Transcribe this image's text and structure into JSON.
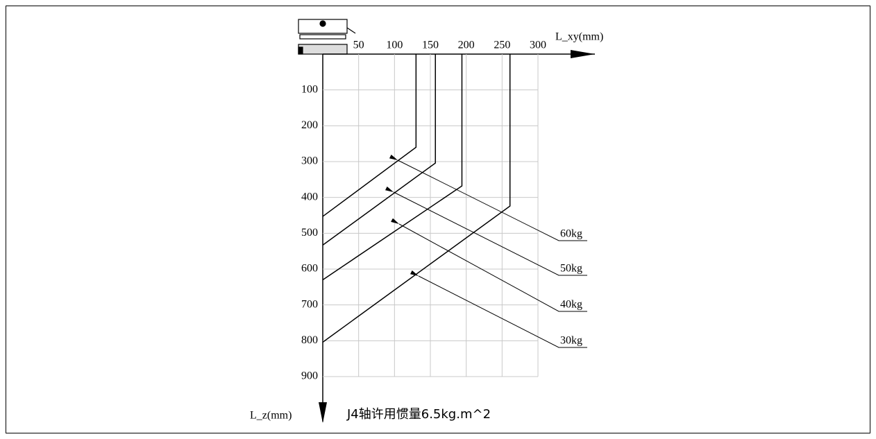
{
  "chart_data": {
    "type": "line",
    "title": "J4轴许用惯量6.5kg.m^2",
    "x_label": "L_xy(mm)",
    "y_label": "L_z(mm)",
    "xlim": [
      0,
      300
    ],
    "ylim": [
      0,
      900
    ],
    "xticks": [
      50,
      100,
      150,
      200,
      250,
      300
    ],
    "yticks": [
      100,
      200,
      300,
      400,
      500,
      600,
      700,
      800,
      900
    ],
    "grid": true,
    "series": [
      {
        "name": "60kg",
        "color": "#000000",
        "x": [
          130,
          130,
          0
        ],
        "values": [
          0,
          260,
          453
        ]
      },
      {
        "name": "50kg",
        "color": "#000000",
        "x": [
          157,
          157,
          0
        ],
        "values": [
          0,
          304,
          533
        ]
      },
      {
        "name": "40kg",
        "color": "#000000",
        "x": [
          194,
          194,
          0
        ],
        "values": [
          0,
          368,
          630
        ]
      },
      {
        "name": "30kg",
        "color": "#000000",
        "x": [
          261,
          261,
          0
        ],
        "values": [
          0,
          424,
          804
        ]
      }
    ]
  }
}
